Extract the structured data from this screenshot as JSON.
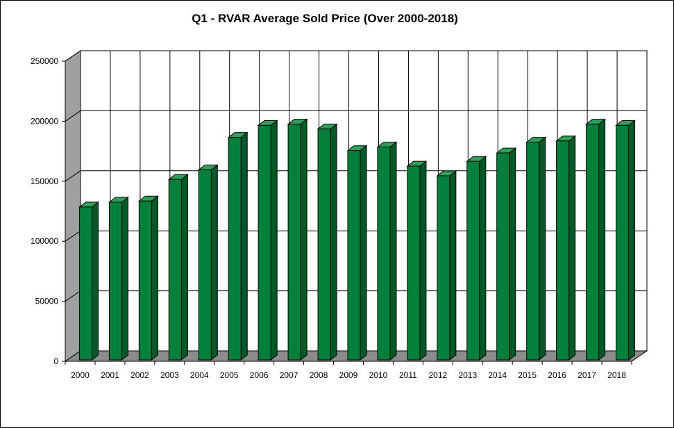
{
  "chart_data": {
    "type": "bar",
    "title": "Q1 - RVAR Average Sold Price (Over 2000-2018)",
    "xlabel": "",
    "ylabel": "",
    "categories": [
      "2000",
      "2001",
      "2002",
      "2003",
      "2004",
      "2005",
      "2006",
      "2007",
      "2008",
      "2009",
      "2010",
      "2011",
      "2012",
      "2013",
      "2014",
      "2015",
      "2016",
      "2017",
      "2018"
    ],
    "values": [
      132000,
      136000,
      137000,
      155000,
      163000,
      190000,
      200000,
      201000,
      197000,
      179000,
      182000,
      166000,
      158000,
      170000,
      177000,
      186000,
      187000,
      201000,
      200000
    ],
    "ylim": [
      0,
      250000
    ],
    "yticks": [
      "0",
      "50000",
      "100000",
      "150000",
      "200000",
      "250000"
    ],
    "grid": true,
    "legend": "none",
    "colors": {
      "bar_front": "#00803a",
      "bar_side": "#005a28",
      "bar_top": "#2fa05a",
      "wall": "#ffffff",
      "side_wall": "#a0a0a0",
      "floor": "#8c8c8c"
    }
  }
}
